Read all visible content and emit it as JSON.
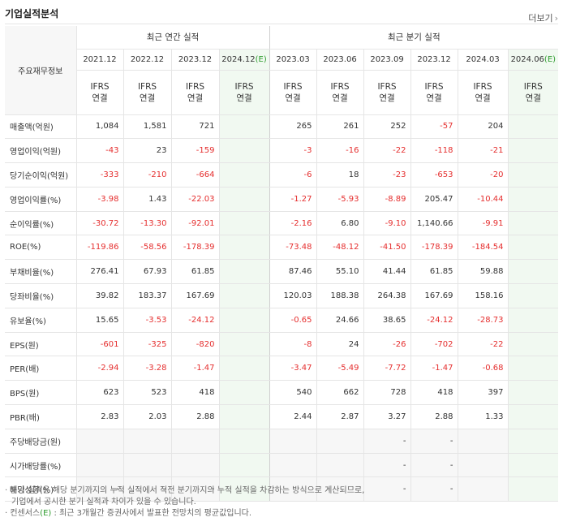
{
  "title": "기업실적분석",
  "more_label": "더보기",
  "more_arrow": "›",
  "header": {
    "row_label": "주요재무정보",
    "annual_group": "최근 연간 실적",
    "quarter_group": "최근 분기 실적",
    "annual_dates": [
      "2021.12",
      "2022.12",
      "2023.12",
      "2024.12"
    ],
    "quarter_dates": [
      "2023.03",
      "2023.06",
      "2023.09",
      "2023.12",
      "2024.03",
      "2024.06"
    ],
    "estimate_mark": "(E)",
    "ifrs_top": "IFRS",
    "ifrs_bottom": "연결"
  },
  "rows": [
    {
      "label": "매출액(억원)",
      "annual": [
        "1,084",
        "1,581",
        "721",
        ""
      ],
      "quarter": [
        "265",
        "261",
        "252",
        "-57",
        "204",
        ""
      ]
    },
    {
      "label": "영업이익(억원)",
      "annual": [
        "-43",
        "23",
        "-159",
        ""
      ],
      "quarter": [
        "-3",
        "-16",
        "-22",
        "-118",
        "-21",
        ""
      ]
    },
    {
      "label": "당기순이익(억원)",
      "annual": [
        "-333",
        "-210",
        "-664",
        ""
      ],
      "quarter": [
        "-6",
        "18",
        "-23",
        "-653",
        "-20",
        ""
      ]
    },
    {
      "label": "영업이익률(%)",
      "annual": [
        "-3.98",
        "1.43",
        "-22.03",
        ""
      ],
      "quarter": [
        "-1.27",
        "-5.93",
        "-8.89",
        "205.47",
        "-10.44",
        ""
      ]
    },
    {
      "label": "순이익률(%)",
      "annual": [
        "-30.72",
        "-13.30",
        "-92.01",
        ""
      ],
      "quarter": [
        "-2.16",
        "6.80",
        "-9.10",
        "1,140.66",
        "-9.91",
        ""
      ]
    },
    {
      "label": "ROE(%)",
      "annual": [
        "-119.86",
        "-58.56",
        "-178.39",
        ""
      ],
      "quarter": [
        "-73.48",
        "-48.12",
        "-41.50",
        "-178.39",
        "-184.54",
        ""
      ]
    },
    {
      "label": "부채비율(%)",
      "annual": [
        "276.41",
        "67.93",
        "61.85",
        ""
      ],
      "quarter": [
        "87.46",
        "55.10",
        "41.44",
        "61.85",
        "59.88",
        ""
      ]
    },
    {
      "label": "당좌비율(%)",
      "annual": [
        "39.82",
        "183.37",
        "167.69",
        ""
      ],
      "quarter": [
        "120.03",
        "188.38",
        "264.38",
        "167.69",
        "158.16",
        ""
      ]
    },
    {
      "label": "유보율(%)",
      "annual": [
        "15.65",
        "-3.53",
        "-24.12",
        ""
      ],
      "quarter": [
        "-0.65",
        "24.66",
        "38.65",
        "-24.12",
        "-28.73",
        ""
      ]
    },
    {
      "label": "EPS(원)",
      "annual": [
        "-601",
        "-325",
        "-820",
        ""
      ],
      "quarter": [
        "-8",
        "24",
        "-26",
        "-702",
        "-22",
        ""
      ]
    },
    {
      "label": "PER(배)",
      "annual": [
        "-2.94",
        "-3.28",
        "-1.47",
        ""
      ],
      "quarter": [
        "-3.47",
        "-5.49",
        "-7.72",
        "-1.47",
        "-0.68",
        ""
      ]
    },
    {
      "label": "BPS(원)",
      "annual": [
        "623",
        "523",
        "418",
        ""
      ],
      "quarter": [
        "540",
        "662",
        "728",
        "418",
        "397",
        ""
      ]
    },
    {
      "label": "PBR(배)",
      "annual": [
        "2.83",
        "2.03",
        "2.88",
        ""
      ],
      "quarter": [
        "2.44",
        "2.87",
        "3.27",
        "2.88",
        "1.33",
        ""
      ]
    },
    {
      "label": "주당배당금(원)",
      "annual": [
        "",
        "",
        "",
        ""
      ],
      "quarter": [
        "",
        "",
        "-",
        "-",
        "",
        ""
      ]
    },
    {
      "label": "시가배당률(%)",
      "annual": [
        "",
        "",
        "",
        ""
      ],
      "quarter": [
        "",
        "",
        "-",
        "-",
        "",
        ""
      ]
    },
    {
      "label": "배당성향(%)",
      "annual": [
        "-",
        "-",
        "-",
        ""
      ],
      "quarter": [
        "",
        "",
        "-",
        "-",
        "",
        ""
      ]
    }
  ],
  "notes": {
    "line1": "· 분기 실적은 해당 분기까지의 누적 실적에서 직전 분기까지의 누적 실적을 차감하는 방식으로 계산되므로,",
    "line2": "기업에서 공시한 분기 실적과 차이가 있을 수 있습니다.",
    "line3a": "· 컨센서스",
    "line3b": "(E)",
    "line3c": " : 최근 3개월간 증권사에서 발표한 전망치의 평균값입니다."
  }
}
